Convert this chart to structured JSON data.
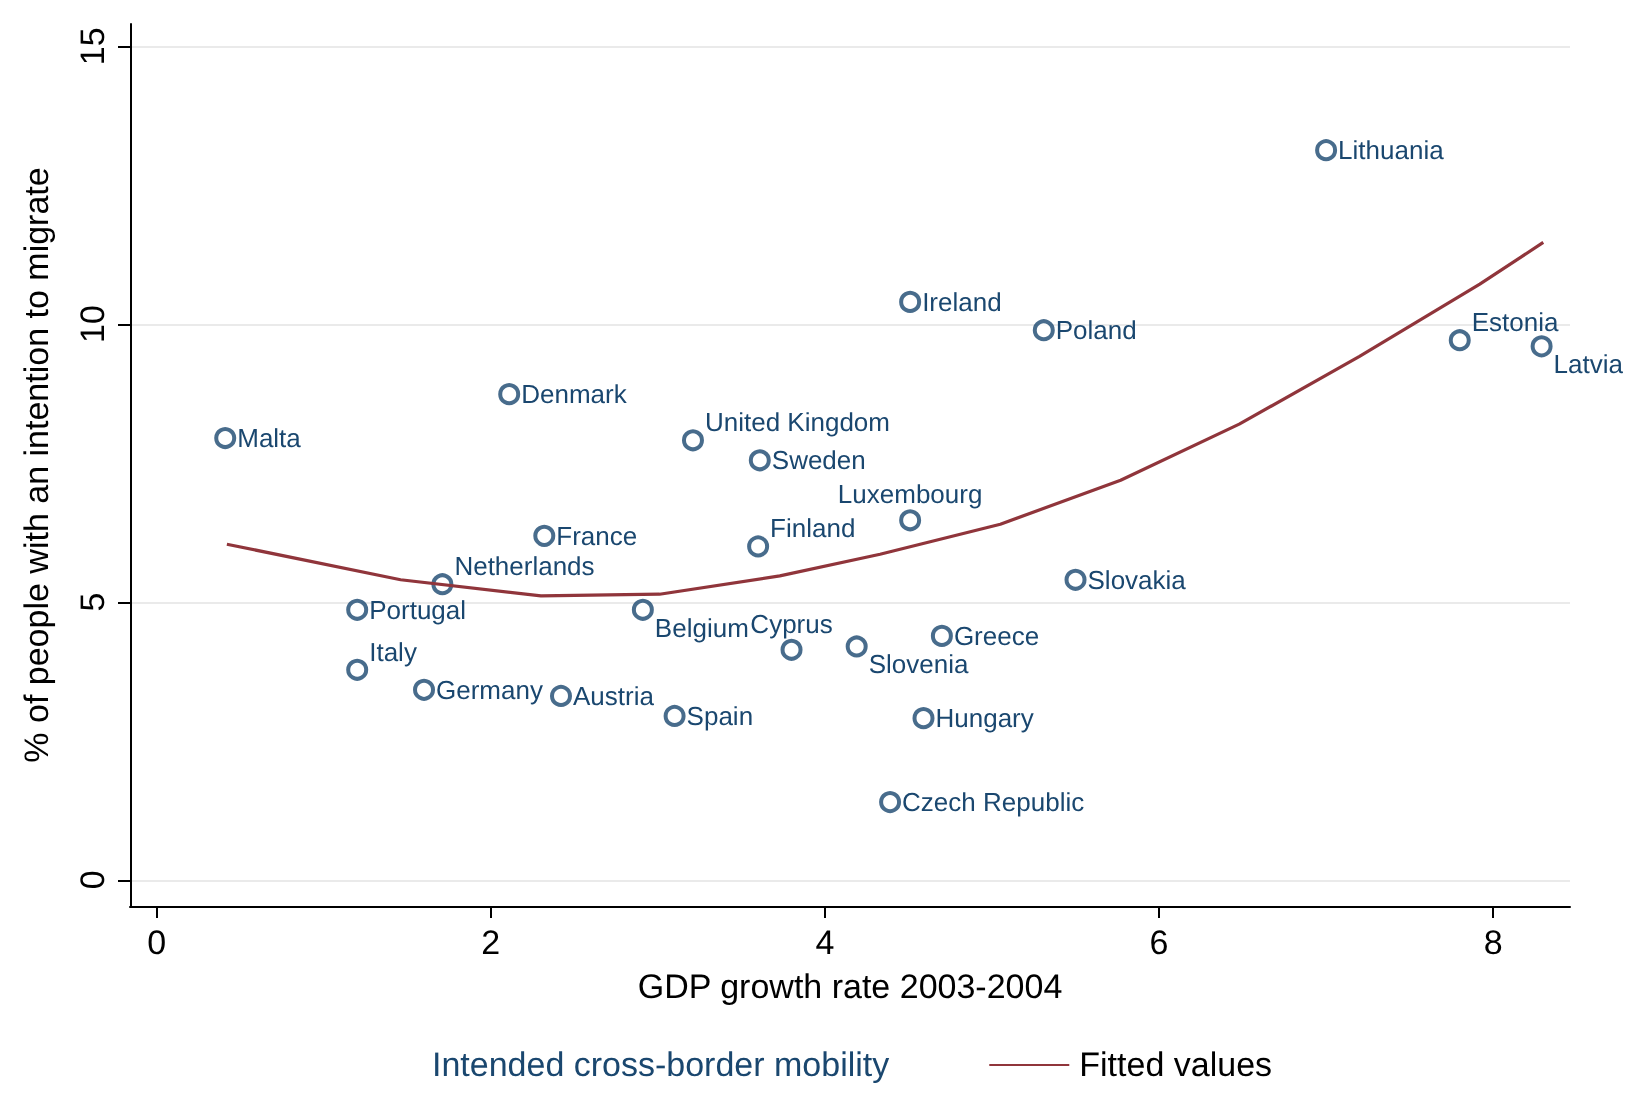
{
  "chart_data": {
    "type": "scatter",
    "xlabel": "GDP growth rate 2003-2004",
    "ylabel": "% of people with an intention to migrate",
    "xlim": [
      -0.16,
      8.46
    ],
    "xticks": [
      0,
      2,
      4,
      6,
      8
    ],
    "ylim": [
      -0.47,
      15.4
    ],
    "yticks": [
      0,
      5,
      10,
      15
    ],
    "grid": "y",
    "legend": "bottom",
    "marker": "circle",
    "series": [
      {
        "name": "Intended cross-border mobility",
        "color": "#1a476f",
        "x": [
          0.41,
          2.11,
          3.21,
          3.61,
          2.32,
          3.6,
          1.71,
          1.2,
          2.91,
          1.2,
          1.6,
          2.42,
          3.1,
          3.8,
          4.19,
          4.7,
          4.59,
          4.39,
          4.51,
          5.5,
          4.51,
          5.31,
          7.0,
          7.8,
          8.29
        ],
        "values": [
          7.95,
          8.74,
          7.91,
          7.55,
          6.19,
          6.0,
          5.32,
          4.86,
          4.86,
          3.78,
          3.42,
          3.31,
          2.95,
          4.14,
          4.2,
          4.39,
          2.91,
          1.4,
          6.47,
          5.4,
          10.4,
          9.89,
          13.13,
          9.71,
          9.6
        ]
      },
      {
        "name": "Fitted values",
        "type": "line",
        "color": "#90353b",
        "marker": "none",
        "x": [
          0.42,
          1.46,
          2.3,
          3.01,
          3.73,
          4.33,
          5.05,
          5.77,
          6.48,
          7.2,
          7.92,
          8.3
        ],
        "values": [
          6.04,
          5.4,
          5.11,
          5.14,
          5.47,
          5.86,
          6.4,
          7.19,
          8.2,
          9.42,
          10.72,
          11.47
        ]
      }
    ],
    "annotations": [
      {
        "text": "Malta",
        "x": 0.41,
        "y": 7.95
      },
      {
        "text": "Denmark",
        "x": 2.11,
        "y": 8.74
      },
      {
        "text": "United Kingdom",
        "x": 3.21,
        "y": 7.91
      },
      {
        "text": "Sweden",
        "x": 3.61,
        "y": 7.55
      },
      {
        "text": "France",
        "x": 2.32,
        "y": 6.19
      },
      {
        "text": "Finland",
        "x": 3.6,
        "y": 6.0
      },
      {
        "text": "Netherlands",
        "x": 1.71,
        "y": 5.32
      },
      {
        "text": "Portugal",
        "x": 1.2,
        "y": 4.86
      },
      {
        "text": "Belgium",
        "x": 2.91,
        "y": 4.86
      },
      {
        "text": "Italy",
        "x": 1.2,
        "y": 3.78
      },
      {
        "text": "Germany",
        "x": 1.6,
        "y": 3.42
      },
      {
        "text": "Austria",
        "x": 2.42,
        "y": 3.31
      },
      {
        "text": "Spain",
        "x": 3.1,
        "y": 2.95
      },
      {
        "text": "Cyprus",
        "x": 3.8,
        "y": 4.14
      },
      {
        "text": "Slovenia",
        "x": 4.19,
        "y": 4.2
      },
      {
        "text": "Greece",
        "x": 4.7,
        "y": 4.39
      },
      {
        "text": "Hungary",
        "x": 4.59,
        "y": 2.91
      },
      {
        "text": "Czech Republic",
        "x": 4.39,
        "y": 1.4
      },
      {
        "text": "Luxembourg",
        "x": 4.51,
        "y": 6.47
      },
      {
        "text": "Slovakia",
        "x": 5.5,
        "y": 5.4
      },
      {
        "text": "Ireland",
        "x": 4.51,
        "y": 10.4
      },
      {
        "text": "Poland",
        "x": 5.31,
        "y": 9.89
      },
      {
        "text": "Lithuania",
        "x": 7.0,
        "y": 13.13
      },
      {
        "text": "Estonia",
        "x": 7.8,
        "y": 9.71
      },
      {
        "text": "Latvia",
        "x": 8.29,
        "y": 9.6
      }
    ]
  }
}
